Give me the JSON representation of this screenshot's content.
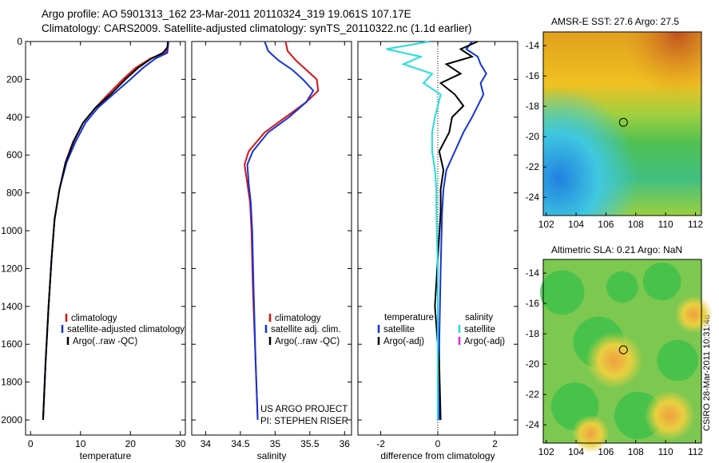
{
  "title_line1": "Argo profile: AO 5901313_162 23-Mar-2011 20110324_319 19.061S 107.17E",
  "title_line2": "Climatology: CARS2009. Satellite-adjusted climatology: synTS_20110322.nc (1.1d earlier)",
  "map1_title": "AMSR-E SST: 27.6 Argo: 27.5",
  "map2_title": "Altimetric SLA: 0.21 Argo: NaN",
  "credit_lines": [
    "US ARGO PROJECT",
    "PI: STEPHEN RISER"
  ],
  "credit_csiro": "CSIRO 28-Mar-2011 10:31:48",
  "colors": {
    "clim": "#dd1111",
    "sat": "#1133dd",
    "argo": "#000000",
    "cyan": "#22dddd",
    "magenta": "#dd22dd"
  },
  "chart_data": [
    {
      "type": "line",
      "xlabel": "temperature",
      "ylabel": "",
      "xlim": [
        -1,
        31
      ],
      "ylim": [
        2080,
        0
      ],
      "xticks": [
        0,
        10,
        20,
        30
      ],
      "yticks": [
        0,
        200,
        400,
        600,
        800,
        1000,
        1200,
        1400,
        1600,
        1800,
        2000
      ],
      "legend": [
        "climatology",
        "satellite-adjusted climatology",
        "Argo(..raw -QC)"
      ],
      "series": [
        {
          "name": "climatology",
          "color_key": "clim",
          "x": [
            27.6,
            27.5,
            27.0,
            24.0,
            21.0,
            18.5,
            15.5,
            13.0,
            10.5,
            8.5,
            7.0,
            5.8,
            4.8,
            4.2,
            3.6,
            3.0,
            2.5
          ],
          "y": [
            0,
            30,
            60,
            90,
            140,
            200,
            280,
            350,
            430,
            530,
            640,
            780,
            940,
            1150,
            1400,
            1700,
            2000
          ]
        },
        {
          "name": "satellite-adjusted climatology",
          "color_key": "sat",
          "x": [
            27.6,
            27.5,
            27.4,
            25.0,
            22.5,
            20.0,
            16.5,
            13.5,
            11.0,
            9.0,
            7.2,
            5.8,
            4.8,
            4.2,
            3.6,
            3.0,
            2.5
          ],
          "y": [
            0,
            30,
            60,
            90,
            140,
            200,
            280,
            350,
            430,
            530,
            640,
            780,
            940,
            1150,
            1400,
            1700,
            2000
          ]
        },
        {
          "name": "Argo(..raw -QC)",
          "color_key": "argo",
          "x": [
            27.5,
            27.4,
            26.5,
            24.2,
            21.5,
            19.0,
            16.0,
            13.0,
            10.5,
            8.6,
            7.0,
            5.8,
            4.8,
            4.2,
            3.6,
            3.0,
            2.5
          ],
          "y": [
            0,
            30,
            60,
            90,
            140,
            200,
            280,
            350,
            430,
            530,
            640,
            780,
            940,
            1150,
            1400,
            1700,
            2000
          ]
        }
      ]
    },
    {
      "type": "line",
      "xlabel": "salinity",
      "ylabel": "",
      "xlim": [
        33.8,
        36.1
      ],
      "ylim": [
        2080,
        0
      ],
      "xticks": [
        34,
        34.5,
        35,
        35.5,
        36
      ],
      "yticks": [],
      "legend": [
        "climatology",
        "satellite adj. clim.",
        "Argo(..raw -QC)"
      ],
      "series": [
        {
          "name": "climatology",
          "color_key": "clim",
          "x": [
            35.15,
            35.18,
            35.3,
            35.45,
            35.6,
            35.62,
            35.45,
            35.15,
            34.85,
            34.62,
            34.56,
            34.6,
            34.64,
            34.66,
            34.68,
            34.72,
            34.75
          ],
          "y": [
            0,
            50,
            100,
            150,
            200,
            260,
            320,
            400,
            480,
            580,
            650,
            750,
            850,
            1000,
            1300,
            1700,
            2000
          ]
        },
        {
          "name": "satellite adj. clim.",
          "color_key": "sat",
          "x": [
            34.85,
            34.9,
            35.05,
            35.25,
            35.4,
            35.55,
            35.45,
            35.2,
            34.9,
            34.68,
            34.6,
            34.62,
            34.65,
            34.67,
            34.69,
            34.72,
            34.75
          ],
          "y": [
            0,
            50,
            100,
            150,
            200,
            260,
            320,
            400,
            480,
            580,
            650,
            750,
            850,
            1000,
            1300,
            1700,
            2000
          ]
        }
      ]
    },
    {
      "type": "line",
      "xlabel": "difference from climatology",
      "ylabel": "",
      "xlim": [
        -2.8,
        2.8
      ],
      "ylim": [
        2080,
        0
      ],
      "xticks": [
        -2,
        0,
        2
      ],
      "yticks": [],
      "legend_left_heading": "temperature",
      "legend_right_heading": "salinity",
      "legend_left": [
        "satellite",
        "Argo(-adj)"
      ],
      "legend_right": [
        "satellite",
        "Argo(-adj)"
      ],
      "series": [
        {
          "name": "satellite",
          "group": "temperature",
          "color_key": "sat",
          "x": [
            1.2,
            1.0,
            1.4,
            1.5,
            1.7,
            1.5,
            1.6,
            1.4,
            1.2,
            0.9,
            0.6,
            0.3,
            0.2,
            0.15,
            0.1,
            0.05,
            0.05
          ],
          "y": [
            0,
            40,
            80,
            120,
            170,
            220,
            280,
            340,
            400,
            480,
            580,
            680,
            780,
            900,
            1200,
            1600,
            2000
          ]
        },
        {
          "name": "Argo(-adj)",
          "group": "temperature",
          "color_key": "argo",
          "x": [
            1.4,
            0.8,
            1.2,
            0.3,
            0.8,
            0.1,
            0.6,
            0.9,
            0.5,
            0.4,
            0.05,
            0.2,
            0.1,
            0.1,
            -0.1,
            0.05,
            0.1
          ],
          "y": [
            0,
            40,
            80,
            120,
            170,
            220,
            280,
            340,
            400,
            480,
            580,
            680,
            780,
            900,
            1400,
            1700,
            2000
          ]
        },
        {
          "name": "satellite",
          "group": "salinity",
          "color_key": "cyan",
          "x": [
            -0.3,
            -1.8,
            -0.6,
            -1.2,
            -0.2,
            -0.5,
            0.1,
            0.0,
            -0.1,
            -0.2,
            -0.2,
            -0.1,
            -0.05,
            -0.05,
            0.0,
            0.0,
            0.0
          ],
          "y": [
            0,
            40,
            80,
            120,
            170,
            220,
            280,
            340,
            400,
            480,
            580,
            680,
            780,
            900,
            1200,
            1600,
            2000
          ]
        }
      ]
    },
    {
      "type": "heatmap",
      "title": "AMSR-E SST: 27.6 Argo: 27.5",
      "xlim": [
        101.8,
        112.4
      ],
      "ylim": [
        -25.2,
        -13.1
      ],
      "xticks": [
        102,
        104,
        106,
        108,
        110,
        112
      ],
      "yticks": [
        -14,
        -16,
        -18,
        -20,
        -22,
        -24
      ],
      "marker": {
        "lon": 107.17,
        "lat": -19.06
      }
    },
    {
      "type": "heatmap",
      "title": "Altimetric SLA: 0.21 Argo: NaN",
      "xlim": [
        101.8,
        112.4
      ],
      "ylim": [
        -25.2,
        -13.1
      ],
      "xticks": [
        102,
        104,
        106,
        108,
        110,
        112
      ],
      "yticks": [
        -14,
        -16,
        -18,
        -20,
        -22,
        -24
      ],
      "marker": {
        "lon": 107.17,
        "lat": -19.06
      }
    }
  ]
}
